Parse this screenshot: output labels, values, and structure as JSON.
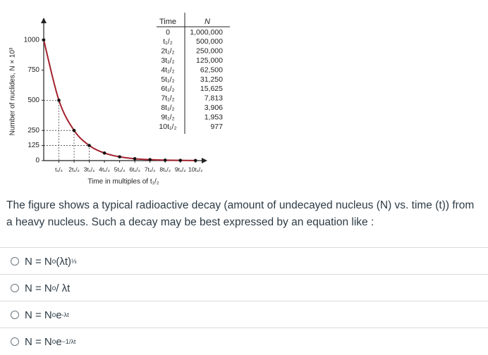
{
  "chart_data": {
    "type": "line",
    "y_label": "Number of nuclides, N × 10³",
    "x_label": "Time in multiples of t₁/₂",
    "x": [
      0,
      1,
      2,
      3,
      4,
      5,
      6,
      7,
      8,
      9,
      10
    ],
    "values": [
      1000,
      500,
      250,
      125,
      62.5,
      31.25,
      15.625,
      7.813,
      3.906,
      1.953,
      0.977
    ],
    "color": "#a3232f",
    "xlim": [
      0,
      10.5
    ],
    "ylim": [
      0,
      1150
    ],
    "xticks": [
      {
        "value": 1,
        "label": "t₁/₂"
      },
      {
        "value": 2,
        "label": "2t₁/₂"
      },
      {
        "value": 3,
        "label": "3t₁/₂"
      },
      {
        "value": 4,
        "label": "4t₁/₂"
      },
      {
        "value": 5,
        "label": "5t₁/₂"
      },
      {
        "value": 6,
        "label": "6t₁/₂"
      },
      {
        "value": 7,
        "label": "7t₁/₂"
      },
      {
        "value": 8,
        "label": "8t₁/₂"
      },
      {
        "value": 9,
        "label": "9t₁/₂"
      },
      {
        "value": 10,
        "label": "10t₁/₂"
      }
    ],
    "yticks": [
      0,
      125,
      250,
      500,
      750,
      1000
    ]
  },
  "table": {
    "headers": [
      "Time",
      "N"
    ],
    "rows": [
      [
        "0",
        "1,000,000"
      ],
      [
        "t₁/₂",
        "500,000"
      ],
      [
        "2t₁/₂",
        "250,000"
      ],
      [
        "3t₁/₂",
        "125,000"
      ],
      [
        "4t₁/₂",
        "62,500"
      ],
      [
        "5t₁/₂",
        "31,250"
      ],
      [
        "6t₁/₂",
        "15,625"
      ],
      [
        "7t₁/₂",
        "7,813"
      ],
      [
        "8t₁/₂",
        "3,906"
      ],
      [
        "9t₁/₂",
        "1,953"
      ],
      [
        "10t₁/₂",
        "977"
      ]
    ]
  },
  "question": "The figure shows a typical radioactive decay (amount of undecayed nucleus (N) vs. time (t)) from a heavy nucleus. Such a decay may be best expressed by an equation like :",
  "options": [
    {
      "text": "N = N",
      "sub": "o",
      "rest": " (λt)",
      "sup": "⅓"
    },
    {
      "text": "N = N",
      "sub": "o",
      "rest": " / λt"
    },
    {
      "text": "N = N",
      "sub": "o",
      "rest": "e ",
      "sup": "-λt"
    },
    {
      "text": "N = N",
      "sub": "o",
      "rest": " e",
      "sup": "−1/λt"
    }
  ]
}
